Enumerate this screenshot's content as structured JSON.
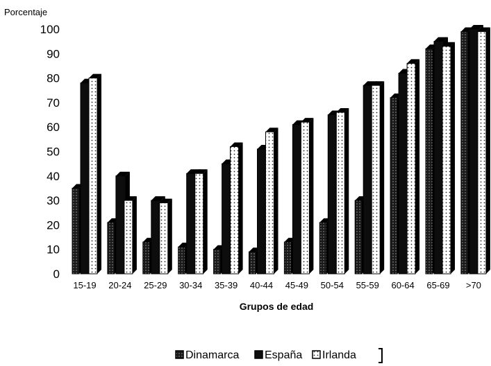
{
  "chart_data": {
    "type": "bar",
    "ylabel": "Porcentaje",
    "xlabel": "Grupos de edad",
    "ylim": [
      0,
      100
    ],
    "yticks": [
      0,
      10,
      20,
      30,
      40,
      50,
      60,
      70,
      80,
      90,
      100
    ],
    "grid": false,
    "legend_position": "bottom",
    "categories": [
      "15-19",
      "20-24",
      "25-29",
      "30-34",
      "35-39",
      "40-44",
      "45-49",
      "50-54",
      "55-59",
      "60-64",
      "65-69",
      ">70"
    ],
    "series": [
      {
        "name": "Dinamarca",
        "values": [
          35,
          21,
          13,
          11,
          10,
          9,
          13,
          21,
          30,
          72,
          92,
          99
        ],
        "pattern": "dotted-dark"
      },
      {
        "name": "España",
        "values": [
          78,
          40,
          30,
          41,
          45,
          51,
          61,
          65,
          77,
          82,
          95,
          100
        ],
        "pattern": "solid-black"
      },
      {
        "name": "Irlanda",
        "values": [
          80,
          30,
          29,
          41,
          52,
          58,
          62,
          66,
          77,
          86,
          93,
          99
        ],
        "pattern": "dotted-white"
      }
    ]
  }
}
